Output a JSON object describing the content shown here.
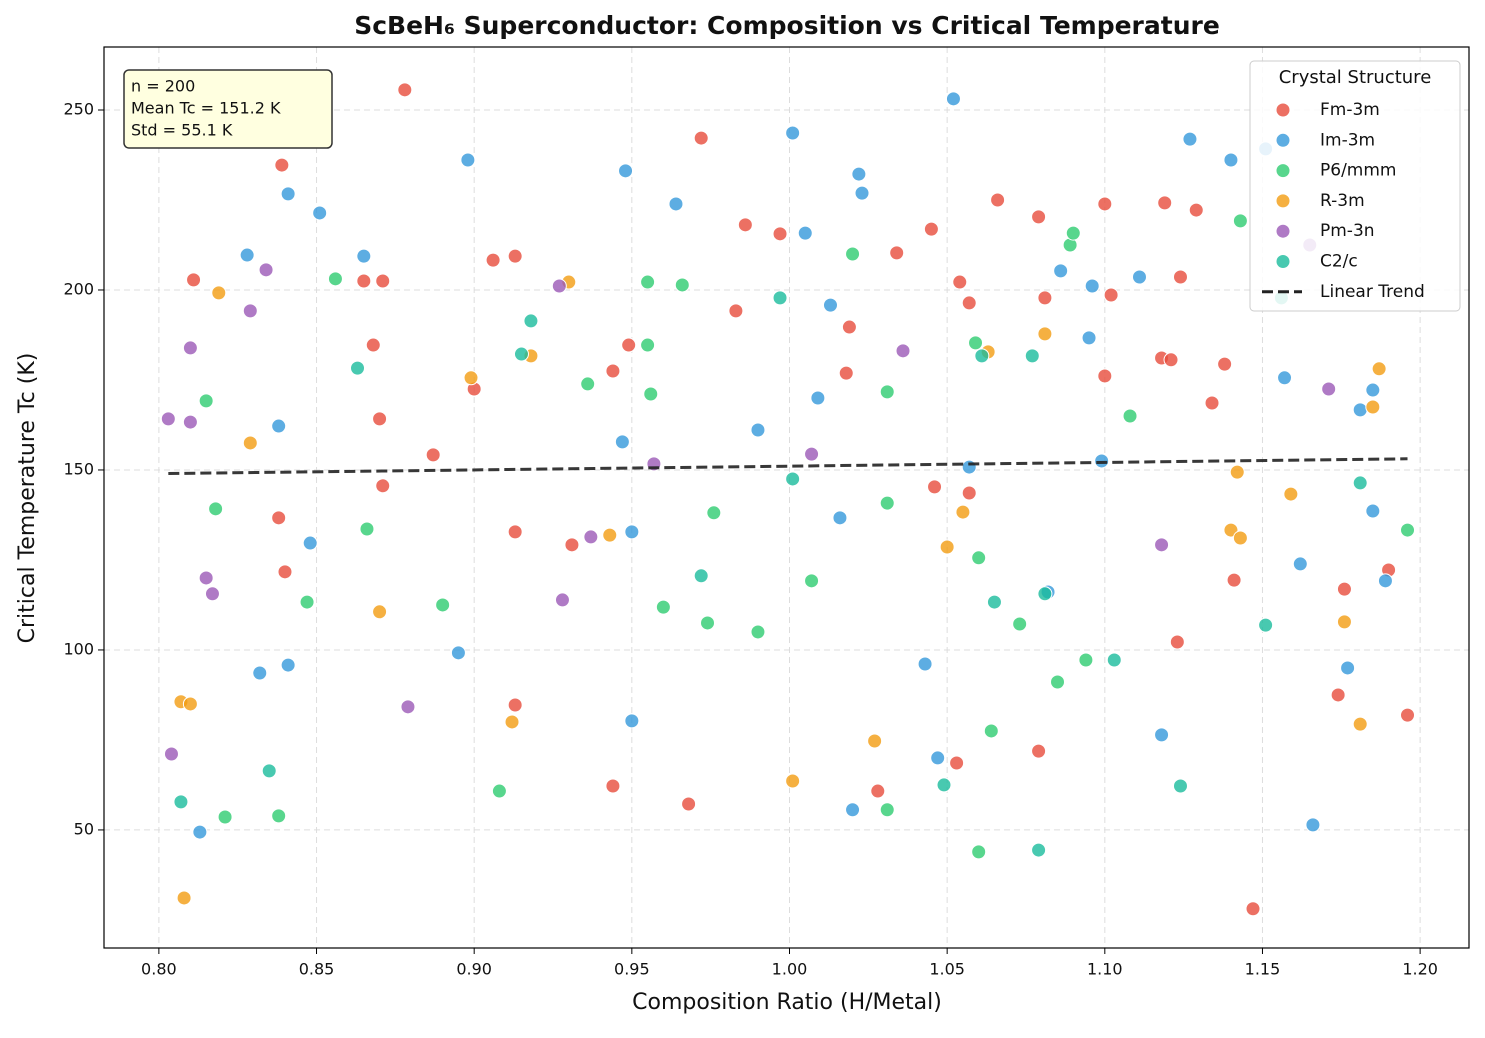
{
  "chart_data": {
    "type": "scatter",
    "title": "ScBeH₆ Superconductor: Composition vs Critical Temperature",
    "x_label": "Composition Ratio (H/Metal)",
    "y_label": "Critical Temperature Tc (K)",
    "xlim": [
      0.7826,
      1.2155
    ],
    "ylim": [
      17.2,
      267.5
    ],
    "xticks": [
      {
        "value": 0.8,
        "label": "0.80"
      },
      {
        "value": 0.85,
        "label": "0.85"
      },
      {
        "value": 0.9,
        "label": "0.90"
      },
      {
        "value": 0.95,
        "label": "0.95"
      },
      {
        "value": 1.0,
        "label": "1.00"
      },
      {
        "value": 1.05,
        "label": "1.05"
      },
      {
        "value": 1.1,
        "label": "1.10"
      },
      {
        "value": 1.15,
        "label": "1.15"
      },
      {
        "value": 1.2,
        "label": "1.20"
      }
    ],
    "yticks": [
      50,
      100,
      150,
      200,
      250
    ],
    "grid": true,
    "legend_title": "Crystal Structure",
    "legend_position": "upper right",
    "annotation": [
      "n = 200",
      "Mean Tc = 151.2 K",
      "Std = 55.1 K"
    ],
    "series": [
      {
        "name": "Fm-3m",
        "color": "#e74c3c",
        "x": [
          0.839,
          0.878,
          0.811,
          0.865,
          0.871,
          0.868,
          0.87,
          0.871,
          0.887,
          0.838,
          0.84,
          0.906,
          0.913,
          0.9,
          0.913,
          0.913,
          0.931,
          0.944,
          0.949,
          0.944,
          0.968,
          0.972,
          0.986,
          0.983,
          0.997,
          1.019,
          1.018,
          1.028,
          1.034,
          1.045,
          1.046,
          1.053,
          1.054,
          1.057,
          1.057,
          1.066,
          1.079,
          1.081,
          1.079,
          1.1,
          1.102,
          1.1,
          1.119,
          1.129,
          1.124,
          1.118,
          1.121,
          1.138,
          1.134,
          1.123,
          1.141,
          1.147,
          1.176,
          1.174,
          1.19,
          1.196
        ],
        "values": [
          234.7,
          255.6,
          202.8,
          202.5,
          202.5,
          184.7,
          164.2,
          145.6,
          154.2,
          136.7,
          121.7,
          208.3,
          209.4,
          172.5,
          132.8,
          84.7,
          129.2,
          177.5,
          184.7,
          62.2,
          57.2,
          242.2,
          218.1,
          194.2,
          215.6,
          189.7,
          176.9,
          60.8,
          210.3,
          216.9,
          145.3,
          68.6,
          202.2,
          196.4,
          143.6,
          225.0,
          220.3,
          197.8,
          71.9,
          223.9,
          198.6,
          176.1,
          224.2,
          222.2,
          203.6,
          181.1,
          180.6,
          179.4,
          168.6,
          102.2,
          119.4,
          28.1,
          116.9,
          87.5,
          122.2,
          81.9
        ]
      },
      {
        "name": "Im-3m",
        "color": "#3498db",
        "x": [
          0.841,
          0.851,
          0.828,
          0.865,
          0.838,
          0.848,
          0.832,
          0.841,
          0.813,
          0.898,
          0.895,
          0.948,
          0.964,
          0.947,
          0.95,
          0.95,
          1.001,
          1.005,
          1.022,
          1.023,
          1.013,
          1.009,
          0.99,
          1.016,
          1.02,
          1.052,
          1.086,
          1.096,
          1.095,
          1.099,
          1.057,
          1.111,
          1.043,
          1.047,
          1.082,
          1.127,
          1.14,
          1.151,
          1.157,
          1.181,
          1.185,
          1.185,
          1.189,
          1.162,
          1.177,
          1.118,
          1.166
        ],
        "values": [
          226.7,
          221.4,
          209.7,
          209.4,
          162.2,
          129.7,
          93.6,
          95.8,
          49.4,
          236.1,
          99.2,
          233.1,
          223.9,
          157.8,
          132.8,
          80.3,
          243.6,
          215.8,
          232.2,
          226.9,
          195.8,
          170.0,
          161.1,
          136.7,
          55.6,
          253.1,
          205.3,
          201.1,
          186.7,
          152.5,
          150.8,
          203.6,
          96.1,
          70.0,
          116.1,
          241.9,
          236.1,
          239.2,
          175.6,
          166.7,
          172.2,
          138.6,
          119.2,
          123.9,
          95.0,
          76.4,
          51.4
        ]
      },
      {
        "name": "P6/mmm",
        "color": "#2ecc71",
        "x": [
          0.856,
          0.815,
          0.818,
          0.866,
          0.847,
          0.89,
          0.821,
          0.838,
          0.908,
          0.955,
          0.966,
          0.955,
          0.956,
          0.936,
          0.976,
          0.96,
          0.974,
          0.99,
          1.007,
          1.02,
          1.031,
          1.031,
          1.031,
          1.059,
          1.06,
          1.06,
          1.064,
          1.073,
          1.085,
          1.094,
          1.089,
          1.09,
          1.108,
          1.143,
          1.196
        ],
        "values": [
          203.1,
          169.2,
          139.2,
          133.6,
          113.3,
          112.5,
          53.6,
          53.9,
          60.8,
          202.2,
          201.4,
          184.7,
          171.1,
          173.9,
          138.1,
          111.9,
          107.5,
          105.0,
          119.2,
          210.0,
          171.7,
          140.8,
          55.6,
          185.3,
          125.6,
          43.9,
          77.5,
          107.2,
          91.1,
          97.2,
          212.5,
          215.8,
          165.0,
          219.2,
          133.3
        ]
      },
      {
        "name": "R-3m",
        "color": "#f39c12",
        "x": [
          0.819,
          0.829,
          0.807,
          0.81,
          0.808,
          0.87,
          0.899,
          0.918,
          0.93,
          0.943,
          0.912,
          1.001,
          1.027,
          1.05,
          1.055,
          1.063,
          1.081,
          1.142,
          1.14,
          1.143,
          1.159,
          1.187,
          1.185,
          1.176,
          1.181
        ],
        "values": [
          199.2,
          157.5,
          85.6,
          85.0,
          31.1,
          110.6,
          175.6,
          181.7,
          202.2,
          131.9,
          80.0,
          63.6,
          74.7,
          128.6,
          138.3,
          182.8,
          187.8,
          149.4,
          133.3,
          131.1,
          143.3,
          178.1,
          167.5,
          107.8,
          79.4
        ]
      },
      {
        "name": "Pm-3n",
        "color": "#9b59b6",
        "x": [
          0.834,
          0.829,
          0.81,
          0.803,
          0.81,
          0.815,
          0.817,
          0.804,
          0.879,
          0.927,
          0.937,
          0.928,
          0.957,
          1.007,
          1.036,
          1.118,
          1.165,
          1.171
        ],
        "values": [
          205.6,
          194.2,
          183.9,
          164.2,
          163.3,
          120.0,
          115.6,
          71.1,
          84.2,
          201.1,
          131.4,
          113.9,
          151.7,
          154.4,
          183.1,
          129.2,
          212.5,
          172.5
        ]
      },
      {
        "name": "C2/c",
        "color": "#1abc9c",
        "x": [
          0.918,
          0.915,
          0.863,
          0.835,
          0.807,
          0.972,
          0.997,
          1.001,
          1.061,
          1.077,
          1.065,
          1.081,
          1.049,
          1.079,
          1.103,
          1.124,
          1.151,
          1.156,
          1.181
        ],
        "values": [
          191.4,
          182.2,
          178.3,
          66.4,
          57.8,
          120.6,
          197.8,
          147.5,
          181.7,
          181.7,
          113.3,
          115.6,
          62.5,
          44.4,
          97.2,
          62.2,
          106.9,
          197.8,
          146.4
        ]
      }
    ],
    "trend": {
      "name": "Linear Trend",
      "color": "#222222",
      "x": [
        0.803,
        1.196
      ],
      "values": [
        149.0,
        153.1
      ]
    }
  }
}
